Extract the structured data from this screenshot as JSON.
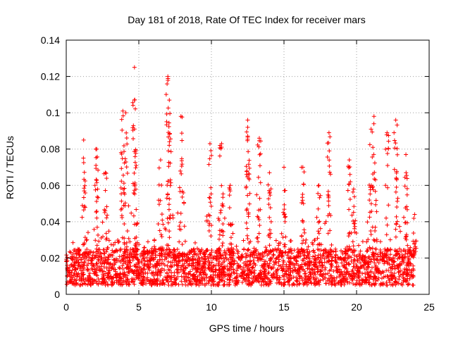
{
  "chart_data": {
    "type": "scatter",
    "title": "Day 181 of 2018, Rate Of TEC Index for receiver mars",
    "xlabel": "GPS time / hours",
    "ylabel": "ROTI / TECUs",
    "xlim": [
      0,
      25
    ],
    "ylim": [
      0,
      0.14
    ],
    "x_ticks": [
      0,
      5,
      10,
      15,
      20,
      25
    ],
    "x_tick_labels": [
      "0",
      "5",
      "10",
      "15",
      "20",
      "25"
    ],
    "y_ticks": [
      0,
      0.02,
      0.04,
      0.06,
      0.08,
      0.1,
      0.12,
      0.14
    ],
    "y_tick_labels": [
      "0",
      "0.02",
      "0.04",
      "0.06",
      "0.08",
      "0.1",
      "0.12",
      "0.14"
    ],
    "grid": true,
    "marker": "+",
    "color": "#ff0000",
    "series": [
      {
        "name": "ROTI",
        "time_range_hours": [
          0,
          24
        ],
        "baseline_range": [
          0.005,
          0.025
        ],
        "notable_points": [
          {
            "x": 4.7,
            "y": 0.125
          },
          {
            "x": 7.0,
            "y": 0.12
          },
          {
            "x": 7.1,
            "y": 0.107
          },
          {
            "x": 3.9,
            "y": 0.101
          },
          {
            "x": 4.1,
            "y": 0.1
          },
          {
            "x": 7.9,
            "y": 0.098
          },
          {
            "x": 21.2,
            "y": 0.098
          },
          {
            "x": 21.0,
            "y": 0.091
          },
          {
            "x": 22.7,
            "y": 0.096
          },
          {
            "x": 12.5,
            "y": 0.096
          },
          {
            "x": 12.5,
            "y": 0.092
          },
          {
            "x": 18.1,
            "y": 0.089
          },
          {
            "x": 22.1,
            "y": 0.089
          },
          {
            "x": 1.2,
            "y": 0.085
          },
          {
            "x": 10.7,
            "y": 0.083
          },
          {
            "x": 9.9,
            "y": 0.083
          },
          {
            "x": 13.3,
            "y": 0.086
          },
          {
            "x": 2.1,
            "y": 0.08
          },
          {
            "x": 4.8,
            "y": 0.079
          },
          {
            "x": 6.5,
            "y": 0.074
          },
          {
            "x": 19.5,
            "y": 0.074
          },
          {
            "x": 23.4,
            "y": 0.077
          },
          {
            "x": 15.0,
            "y": 0.07
          },
          {
            "x": 16.3,
            "y": 0.07
          },
          {
            "x": 2.7,
            "y": 0.067
          },
          {
            "x": 11.3,
            "y": 0.06
          },
          {
            "x": 14.0,
            "y": 0.067
          },
          {
            "x": 17.4,
            "y": 0.06
          },
          {
            "x": 19.8,
            "y": 0.058
          },
          {
            "x": 24.0,
            "y": 0.044
          }
        ]
      }
    ]
  }
}
